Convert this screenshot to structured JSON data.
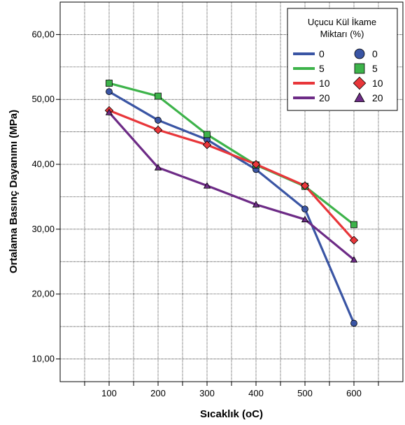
{
  "chart_data": {
    "type": "line",
    "xlabel": "Sıcaklık (oC)",
    "ylabel": "Ortalama Basınç Dayanımı (MPa)",
    "x": [
      100,
      200,
      300,
      400,
      500,
      600
    ],
    "xlim": [
      0,
      700
    ],
    "ylim": [
      6.5,
      65
    ],
    "yticks": [
      "10,00",
      "20,00",
      "30,00",
      "40,00",
      "50,00",
      "60,00"
    ],
    "ytick_values": [
      10,
      20,
      30,
      40,
      50,
      60
    ],
    "xticks": [
      "100",
      "200",
      "300",
      "400",
      "500",
      "600"
    ],
    "grid": true,
    "legend": {
      "title_line1": "Uçucu Kül İkame",
      "title_line2": "Miktarı (%)",
      "placement": "top-right"
    },
    "series": [
      {
        "name": "0",
        "values": [
          51.2,
          46.8,
          43.8,
          39.2,
          33.1,
          15.5
        ],
        "color": "#3a55a4",
        "marker": "circle"
      },
      {
        "name": "5",
        "values": [
          52.5,
          50.5,
          44.6,
          39.9,
          36.6,
          30.7
        ],
        "color": "#3db34a",
        "marker": "square"
      },
      {
        "name": "10",
        "values": [
          48.3,
          45.3,
          43.0,
          40.0,
          36.7,
          28.3
        ],
        "color": "#e8363a",
        "marker": "diamond"
      },
      {
        "name": "20",
        "values": [
          48.0,
          39.5,
          36.7,
          33.8,
          31.5,
          25.3
        ],
        "color": "#6d2b86",
        "marker": "triangle"
      }
    ]
  }
}
